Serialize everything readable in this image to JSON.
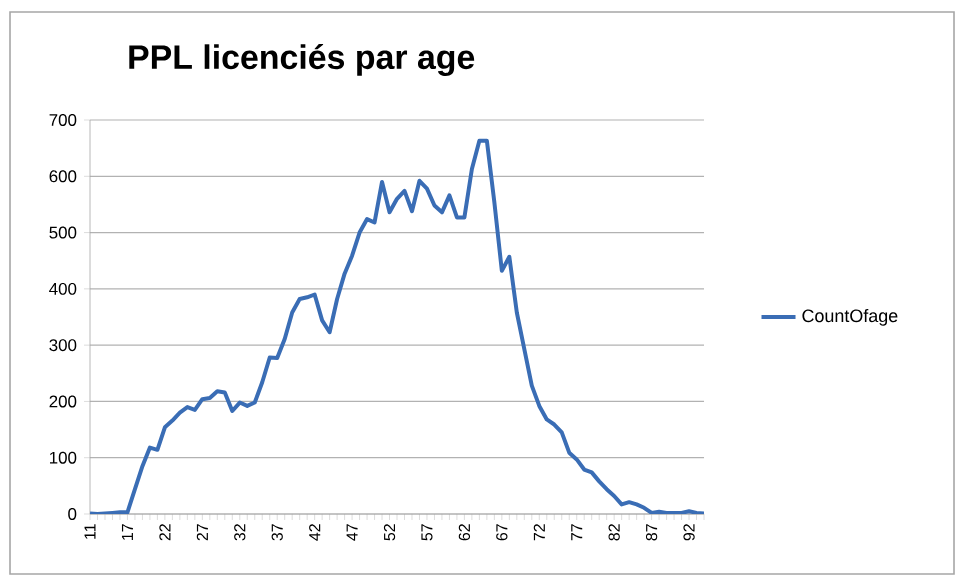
{
  "chart_data": {
    "type": "line",
    "title": "PPL licenciés par age",
    "categories": [
      "11",
      null,
      null,
      null,
      null,
      "17",
      null,
      null,
      null,
      null,
      "22",
      null,
      null,
      null,
      null,
      "27",
      null,
      null,
      null,
      null,
      "32",
      null,
      null,
      null,
      null,
      "37",
      null,
      null,
      null,
      null,
      "42",
      null,
      null,
      null,
      null,
      "47",
      null,
      null,
      null,
      null,
      "52",
      null,
      null,
      null,
      null,
      "57",
      null,
      null,
      null,
      null,
      "62",
      null,
      null,
      null,
      null,
      "67",
      null,
      null,
      null,
      null,
      "72",
      null,
      null,
      null,
      null,
      "77",
      null,
      null,
      null,
      null,
      "82",
      null,
      null,
      null,
      null,
      "87",
      null,
      null,
      null,
      null,
      "92",
      null,
      null
    ],
    "series": [
      {
        "name": "CountOfage",
        "color": "#3a6db5",
        "values": [
          1,
          0,
          1,
          2,
          3,
          3,
          44,
          85,
          118,
          114,
          154,
          166,
          180,
          190,
          185,
          204,
          206,
          218,
          216,
          183,
          198,
          192,
          198,
          234,
          278,
          277,
          311,
          358,
          382,
          385,
          390,
          344,
          323,
          382,
          427,
          459,
          500,
          524,
          518,
          590,
          536,
          560,
          574,
          538,
          592,
          578,
          548,
          536,
          566,
          527,
          527,
          613,
          663,
          663,
          554,
          432,
          457,
          358,
          293,
          228,
          192,
          168,
          159,
          145,
          109,
          97,
          79,
          74,
          58,
          44,
          32,
          17,
          21,
          17,
          11,
          2,
          4,
          2,
          2,
          2,
          5,
          2,
          1
        ]
      }
    ],
    "ylim": [
      0,
      700
    ],
    "yticks": [
      0,
      100,
      200,
      300,
      400,
      500,
      600,
      700
    ],
    "grid": "y",
    "legend": "right"
  }
}
